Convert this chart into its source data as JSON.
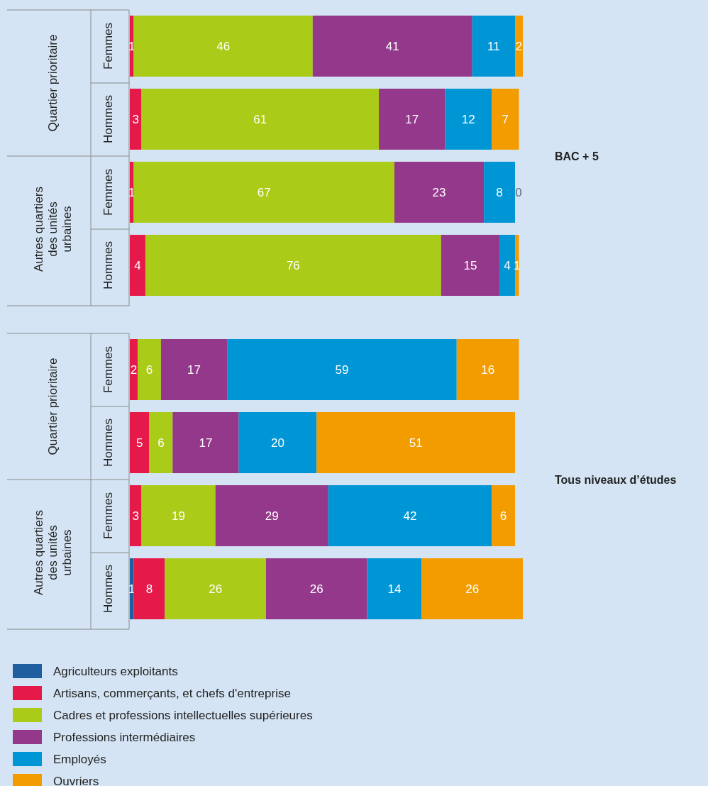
{
  "chart_data": [
    {
      "type": "bar",
      "orientation": "horizontal",
      "stacked": true,
      "y2label": "BAC + 5",
      "categories": [
        "Femmes",
        "Hommes",
        "Femmes",
        "Hommes"
      ],
      "annotations": [
        "Quartier prioritaire",
        "Autres quartiers des unités urbaines"
      ],
      "series": [
        {
          "color": "#1f5fa0",
          "values": [
            0,
            0,
            0,
            0
          ],
          "value_labels": [
            null,
            null,
            null,
            null
          ]
        },
        {
          "color": "#e5194a",
          "values": [
            1,
            3,
            1,
            4
          ],
          "value_labels": [
            "1",
            "3",
            "1",
            "4"
          ]
        },
        {
          "color": "#aacb17",
          "values": [
            46,
            61,
            67,
            76
          ],
          "value_labels": [
            "46",
            "61",
            "67",
            "76"
          ]
        },
        {
          "color": "#93388a",
          "values": [
            41,
            17,
            23,
            15
          ],
          "value_labels": [
            "41",
            "17",
            "23",
            "15"
          ]
        },
        {
          "color": "#0096d6",
          "values": [
            11,
            12,
            8,
            4
          ],
          "value_labels": [
            "11",
            "12",
            "8",
            "4"
          ]
        },
        {
          "color": "#f39c00",
          "values": [
            2,
            7,
            0,
            1
          ],
          "value_labels": [
            "2",
            "7",
            "0",
            "1"
          ]
        }
      ]
    },
    {
      "type": "bar",
      "orientation": "horizontal",
      "stacked": true,
      "y2label": "Tous niveaux d’études",
      "categories": [
        "Femmes",
        "Hommes",
        "Femmes",
        "Hommes"
      ],
      "annotations": [
        "Quartier prioritaire",
        "Autres quartiers des unités urbaines"
      ],
      "legend": "bottom",
      "series": [
        {
          "name": "Agriculteurs exploitants",
          "color": "#1f5fa0",
          "values": [
            0,
            0,
            0,
            1
          ],
          "value_labels": [
            null,
            null,
            null,
            "1"
          ]
        },
        {
          "name": "Artisans, commerçants, et chefs d'entreprise",
          "color": "#e5194a",
          "values": [
            2,
            5,
            3,
            8
          ],
          "value_labels": [
            "2",
            "5",
            "3",
            "8"
          ]
        },
        {
          "name": "Cadres et professions intellectuelles supérieures",
          "color": "#aacb17",
          "values": [
            6,
            6,
            19,
            26
          ],
          "value_labels": [
            "6",
            "6",
            "19",
            "26"
          ]
        },
        {
          "name": "Professions intermédiaires",
          "color": "#93388a",
          "values": [
            17,
            17,
            29,
            26
          ],
          "value_labels": [
            "17",
            "17",
            "29",
            "26"
          ]
        },
        {
          "name": "Employés",
          "color": "#0096d6",
          "values": [
            59,
            20,
            42,
            14
          ],
          "value_labels": [
            "59",
            "20",
            "42",
            "14"
          ]
        },
        {
          "name": "Ouvriers",
          "color": "#f39c00",
          "values": [
            16,
            51,
            6,
            26
          ],
          "value_labels": [
            "16",
            "51",
            "6",
            "26"
          ]
        }
      ]
    }
  ]
}
